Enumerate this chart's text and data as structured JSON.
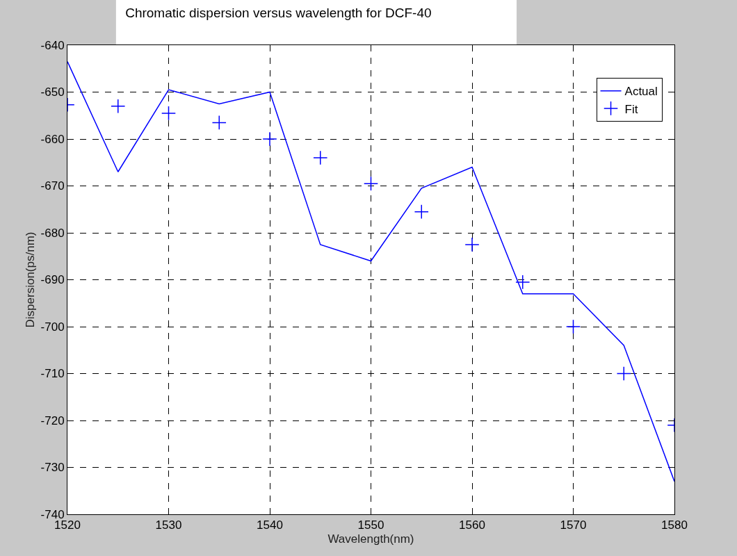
{
  "chart_data": {
    "type": "line",
    "title": "Chromatic dispersion versus wavelength for DCF-40",
    "xlabel": "Wavelength(nm)",
    "ylabel": "Dispersion(ps/nm)",
    "x": [
      1520,
      1525,
      1530,
      1535,
      1540,
      1545,
      1550,
      1555,
      1560,
      1565,
      1570,
      1575,
      1580
    ],
    "series": [
      {
        "name": "Actual",
        "color": "#0000ff",
        "line_style": "solid",
        "marker": "none",
        "values": [
          -643.5,
          -667,
          -649.5,
          -652.5,
          -650,
          -682.5,
          -686,
          -670.5,
          -666,
          -693,
          -693,
          -704,
          -733
        ]
      },
      {
        "name": "Fit",
        "type": "scatter",
        "color": "#0000ff",
        "marker": "cross",
        "values": [
          -652.7,
          -653,
          -654.5,
          -656.5,
          -660,
          -664,
          -669.5,
          -675.5,
          -682.5,
          -690.5,
          -700,
          -710,
          -721
        ]
      }
    ],
    "xlim": [
      1520,
      1580
    ],
    "xticks": [
      1520,
      1530,
      1540,
      1550,
      1560,
      1570,
      1580
    ],
    "ylim": [
      -740,
      -640
    ],
    "yticks": [
      -740,
      -730,
      -720,
      -710,
      -700,
      -690,
      -680,
      -670,
      -660,
      -650,
      -640
    ],
    "grid": true,
    "legend": "top right"
  }
}
